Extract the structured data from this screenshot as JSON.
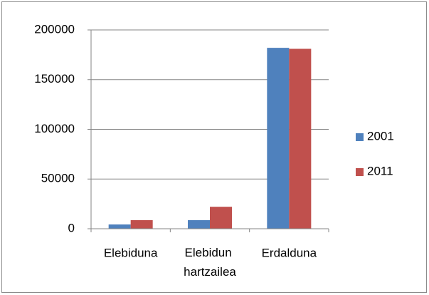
{
  "chart_data": {
    "type": "bar",
    "categories": [
      "Elebiduna",
      "Elebidun hartzailea",
      "Erdalduna"
    ],
    "series": [
      {
        "name": "2001",
        "color": "#4f81bd",
        "values": [
          4300,
          8600,
          182000
        ]
      },
      {
        "name": "2011",
        "color": "#c0504d",
        "values": [
          8600,
          22100,
          181000
        ]
      }
    ],
    "ylim": [
      0,
      200000
    ],
    "yticks": [
      0,
      50000,
      100000,
      150000,
      200000
    ],
    "grid": true,
    "legend": "right"
  }
}
